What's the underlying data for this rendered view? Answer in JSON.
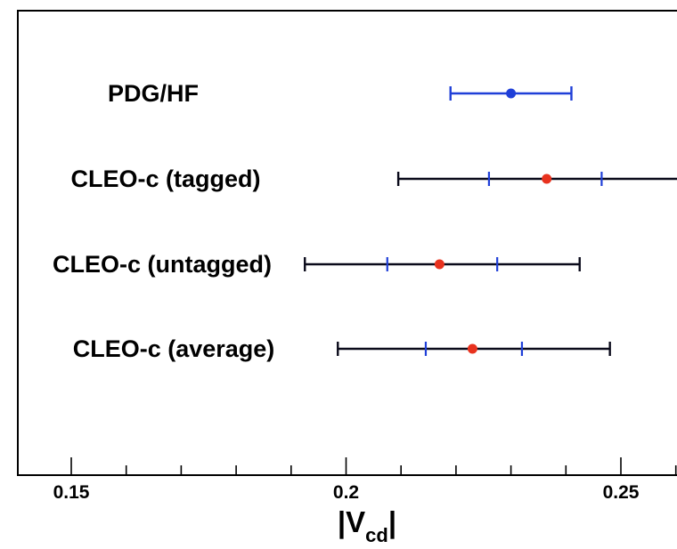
{
  "chart_data": {
    "type": "scatter",
    "subtype": "error-bar-comparison",
    "title": "",
    "xlabel": "|V",
    "xlabel_subscript": "cd",
    "xlabel_suffix": "|",
    "xlim": [
      0.14,
      0.263
    ],
    "xticks": [
      {
        "value": 0.15,
        "label": "0.15"
      },
      {
        "value": 0.2,
        "label": "0.2"
      },
      {
        "value": 0.25,
        "label": "0.25"
      }
    ],
    "minor_tick_step": 0.01,
    "grid": false,
    "legend": "none",
    "measurements": [
      {
        "label": "PDG/HF",
        "value": 0.23,
        "outer": [
          0.219,
          0.241
        ],
        "inner": null,
        "color": "#1f3fd8",
        "point_color": "#1f3fd8"
      },
      {
        "label": "CLEO-c (tagged)",
        "value": 0.2365,
        "outer": [
          0.2095,
          0.263
        ],
        "inner": [
          0.226,
          0.2465
        ],
        "color": "#0a0a1a",
        "point_color": "#e8321e"
      },
      {
        "label": "CLEO-c (untagged)",
        "value": 0.217,
        "outer": [
          0.1925,
          0.2425
        ],
        "inner": [
          0.2075,
          0.2275
        ],
        "color": "#0a0a1a",
        "point_color": "#e8321e"
      },
      {
        "label": "CLEO-c (average)",
        "value": 0.223,
        "outer": [
          0.1985,
          0.248
        ],
        "inner": [
          0.2145,
          0.232
        ],
        "color": "#0a0a1a",
        "point_color": "#e8321e"
      }
    ],
    "inner_tick_color": "#1f3fd8"
  }
}
